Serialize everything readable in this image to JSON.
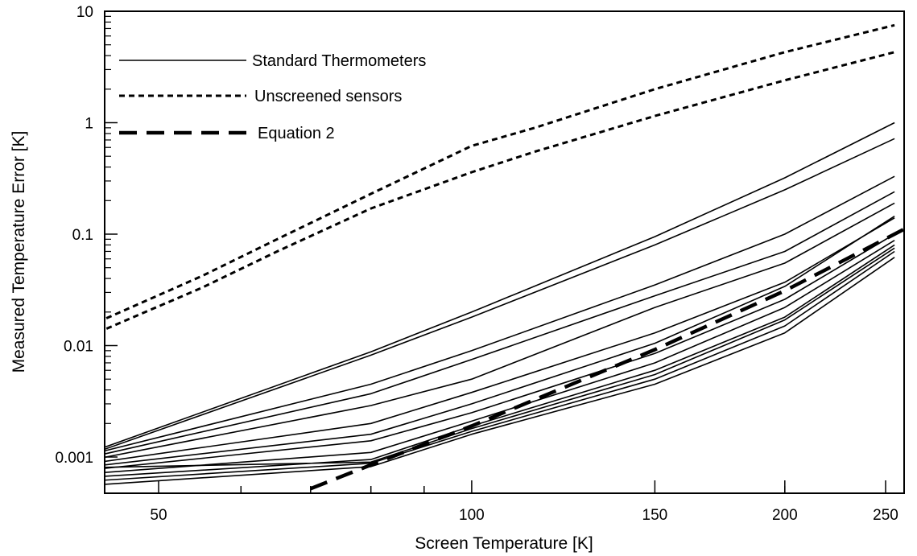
{
  "chart_data": {
    "type": "line",
    "title": "",
    "xlabel": "Screen Temperature [K]",
    "ylabel": "Measured Temperature Error [K]",
    "x_scale": "log",
    "y_scale": "log",
    "xlim": [
      40,
      260
    ],
    "ylim": [
      0.0005,
      10
    ],
    "x_ticks": [
      50,
      100,
      150,
      200,
      250
    ],
    "x_tick_labels": [
      "50",
      "100",
      "150",
      "200",
      "250"
    ],
    "y_ticks": [
      0.001,
      0.01,
      0.1,
      1,
      10
    ],
    "y_tick_labels": [
      "0.001",
      "0.01",
      "0.1",
      "1",
      "10"
    ],
    "legend_position": "top-left",
    "legend": [
      {
        "label": "Standard Thermometers",
        "style": "solid"
      },
      {
        "label": "Unscreened sensors",
        "style": "dotted"
      },
      {
        "label": "Equation 2",
        "style": "dashed"
      }
    ],
    "series": [
      {
        "group": "Unscreened sensors",
        "style": "dotted",
        "points": [
          [
            42,
            0.0138
          ],
          [
            55,
            0.042
          ],
          [
            65,
            0.09
          ],
          [
            80,
            0.23
          ],
          [
            100,
            0.62
          ],
          [
            115,
            0.9
          ],
          [
            150,
            2.0
          ],
          [
            200,
            4.3
          ],
          [
            255,
            7.5
          ]
        ]
      },
      {
        "group": "Unscreened sensors",
        "style": "dotted",
        "points": [
          [
            42,
            0.0112
          ],
          [
            55,
            0.033
          ],
          [
            65,
            0.07
          ],
          [
            80,
            0.17
          ],
          [
            100,
            0.36
          ],
          [
            115,
            0.55
          ],
          [
            150,
            1.15
          ],
          [
            200,
            2.4
          ],
          [
            255,
            4.3
          ]
        ]
      },
      {
        "group": "Equation 2",
        "style": "dashed",
        "points": [
          [
            70,
            0.00052
          ],
          [
            80,
            0.00085
          ],
          [
            100,
            0.0019
          ],
          [
            150,
            0.0092
          ],
          [
            200,
            0.031
          ],
          [
            260,
            0.11
          ]
        ]
      },
      {
        "group": "Standard Thermometers",
        "style": "solid",
        "points": [
          [
            42,
            0.00102
          ],
          [
            80,
            0.0088
          ],
          [
            100,
            0.02
          ],
          [
            150,
            0.095
          ],
          [
            200,
            0.32
          ],
          [
            255,
            1.0
          ]
        ]
      },
      {
        "group": "Standard Thermometers",
        "style": "solid",
        "points": [
          [
            42,
            0.00098
          ],
          [
            80,
            0.0082
          ],
          [
            100,
            0.018
          ],
          [
            150,
            0.08
          ],
          [
            200,
            0.25
          ],
          [
            255,
            0.72
          ]
        ]
      },
      {
        "group": "Standard Thermometers",
        "style": "solid",
        "points": [
          [
            42,
            0.001
          ],
          [
            80,
            0.0045
          ],
          [
            100,
            0.009
          ],
          [
            150,
            0.035
          ],
          [
            200,
            0.1
          ],
          [
            255,
            0.33
          ]
        ]
      },
      {
        "group": "Standard Thermometers",
        "style": "solid",
        "points": [
          [
            42,
            0.00095
          ],
          [
            80,
            0.0037
          ],
          [
            100,
            0.0075
          ],
          [
            150,
            0.028
          ],
          [
            200,
            0.07
          ],
          [
            255,
            0.24
          ]
        ]
      },
      {
        "group": "Standard Thermometers",
        "style": "solid",
        "points": [
          [
            42,
            0.0009
          ],
          [
            80,
            0.0029
          ],
          [
            100,
            0.005
          ],
          [
            150,
            0.022
          ],
          [
            200,
            0.055
          ],
          [
            255,
            0.19
          ]
        ]
      },
      {
        "group": "Standard Thermometers",
        "style": "solid",
        "points": [
          [
            42,
            0.00085
          ],
          [
            80,
            0.002
          ],
          [
            100,
            0.0038
          ],
          [
            150,
            0.013
          ],
          [
            200,
            0.037
          ],
          [
            255,
            0.14
          ]
        ]
      },
      {
        "group": "Standard Thermometers",
        "style": "solid",
        "points": [
          [
            42,
            0.0008
          ],
          [
            80,
            0.0016
          ],
          [
            100,
            0.003
          ],
          [
            150,
            0.0105
          ],
          [
            200,
            0.034
          ],
          [
            255,
            0.145
          ]
        ]
      },
      {
        "group": "Standard Thermometers",
        "style": "solid",
        "points": [
          [
            42,
            0.00075
          ],
          [
            80,
            0.0014
          ],
          [
            100,
            0.0025
          ],
          [
            150,
            0.0085
          ],
          [
            200,
            0.026
          ],
          [
            255,
            0.1
          ]
        ]
      },
      {
        "group": "Standard Thermometers",
        "style": "solid",
        "points": [
          [
            42,
            0.0007
          ],
          [
            80,
            0.0011
          ],
          [
            100,
            0.0021
          ],
          [
            150,
            0.007
          ],
          [
            200,
            0.022
          ],
          [
            255,
            0.088
          ]
        ]
      },
      {
        "group": "Standard Thermometers",
        "style": "solid",
        "points": [
          [
            42,
            0.00065
          ],
          [
            80,
            0.00095
          ],
          [
            100,
            0.0019
          ],
          [
            150,
            0.006
          ],
          [
            200,
            0.018
          ],
          [
            255,
            0.08
          ]
        ]
      },
      {
        "group": "Standard Thermometers",
        "style": "solid",
        "points": [
          [
            42,
            0.0006
          ],
          [
            80,
            0.00088
          ],
          [
            100,
            0.0017
          ],
          [
            150,
            0.005
          ],
          [
            200,
            0.015
          ],
          [
            255,
            0.07
          ]
        ]
      },
      {
        "group": "Standard Thermometers",
        "style": "solid",
        "points": [
          [
            42,
            0.00055
          ],
          [
            80,
            0.00082
          ],
          [
            100,
            0.0016
          ],
          [
            150,
            0.0045
          ],
          [
            200,
            0.013
          ],
          [
            255,
            0.062
          ]
        ]
      },
      {
        "group": "Standard Thermometers",
        "style": "solid",
        "points": [
          [
            42,
            0.0008
          ],
          [
            80,
            0.0009
          ],
          [
            100,
            0.0018
          ],
          [
            150,
            0.0055
          ],
          [
            200,
            0.017
          ],
          [
            255,
            0.075
          ]
        ]
      }
    ]
  }
}
